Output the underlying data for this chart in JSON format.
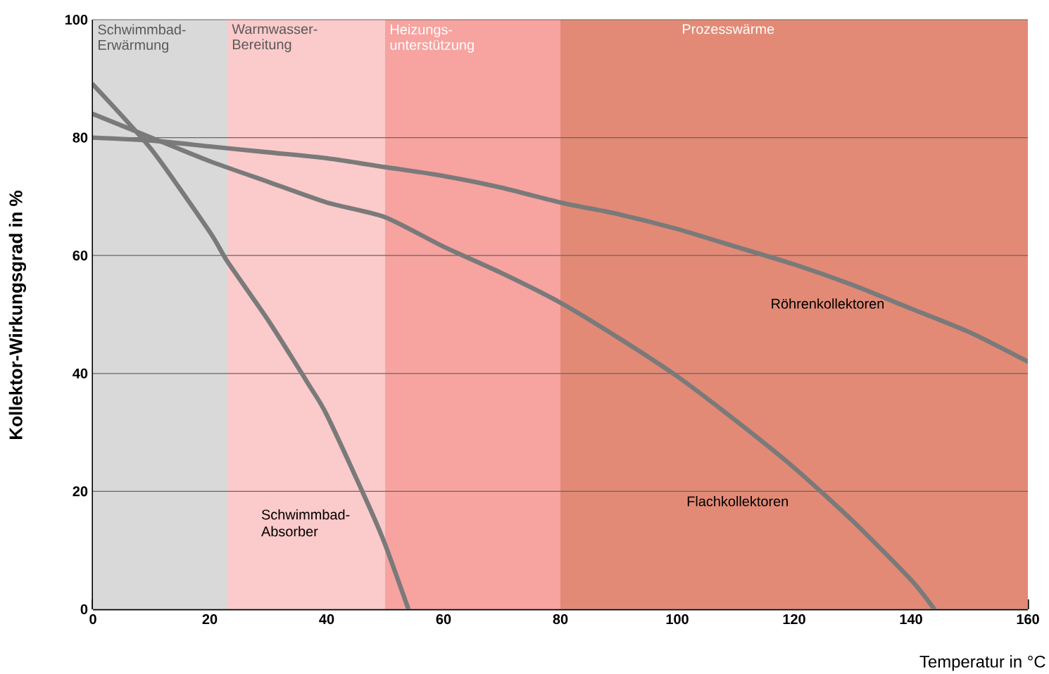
{
  "chart_data": {
    "type": "line",
    "xlabel": "Temperatur in °C",
    "ylabel": "Kollektor-Wirkungsgrad in %",
    "xlim": [
      0,
      160
    ],
    "ylim": [
      0,
      100
    ],
    "xticks": [
      0,
      20,
      40,
      60,
      80,
      100,
      120,
      140,
      160
    ],
    "yticks": [
      0,
      20,
      40,
      60,
      80,
      100
    ],
    "grid": "y",
    "marker": "none",
    "line_style": "solid",
    "bands": [
      {
        "axis": "x",
        "from": 0,
        "to": 23,
        "label": "Schwimmbad-Erwärmung",
        "color": "#d9d9d9"
      },
      {
        "axis": "x",
        "from": 23,
        "to": 50,
        "label": "Warmwasser-Bereitung",
        "color": "#fbcaca"
      },
      {
        "axis": "x",
        "from": 50,
        "to": 80,
        "label": "Heizungs-unterstützung",
        "color": "#f7a3a0"
      },
      {
        "axis": "x",
        "from": 80,
        "to": 160,
        "label": "Prozesswärme",
        "color": "#e28a76"
      }
    ],
    "series": [
      {
        "name": "Schwimmbad-Absorber",
        "color": "#7a7a7a",
        "x": [
          0,
          10,
          20,
          23,
          30,
          37,
          40,
          47,
          50,
          54
        ],
        "values": [
          89,
          78,
          64,
          59,
          49,
          38,
          33,
          18,
          11,
          0
        ]
      },
      {
        "name": "Flachkollektoren",
        "color": "#7a7a7a",
        "x": [
          0,
          10,
          20,
          30,
          40,
          50,
          60,
          70,
          80,
          90,
          100,
          110,
          120,
          130,
          140,
          144
        ],
        "values": [
          84,
          80,
          76,
          72.5,
          69,
          66.5,
          61.5,
          57,
          52,
          46,
          39.5,
          32,
          24,
          15,
          5,
          0
        ]
      },
      {
        "name": "Röhrenkollektoren",
        "color": "#7a7a7a",
        "x": [
          0,
          10,
          20,
          30,
          40,
          50,
          60,
          70,
          80,
          90,
          100,
          110,
          120,
          130,
          140,
          150,
          160
        ],
        "values": [
          80,
          79.5,
          78.5,
          77.5,
          76.5,
          75,
          73.5,
          71.5,
          69,
          67,
          64.5,
          61.5,
          58.5,
          55,
          51,
          47,
          42
        ]
      }
    ]
  }
}
